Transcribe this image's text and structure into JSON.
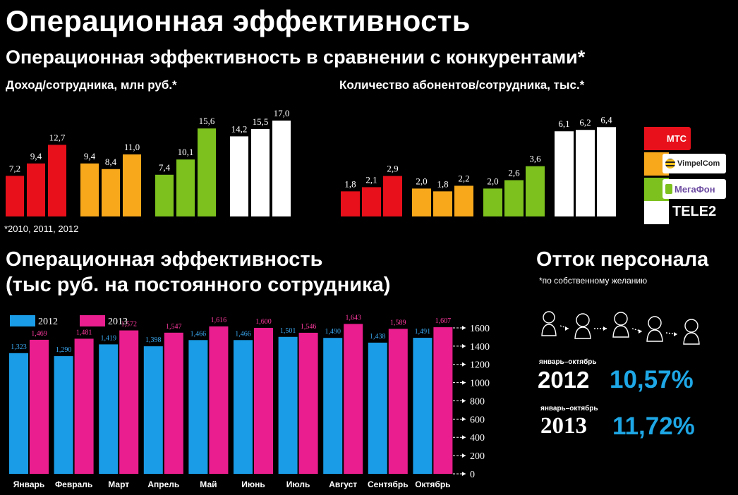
{
  "header": {
    "title": "Операционная эффективность",
    "subtitle": "Операционная эффективность в сравнении с конкурентами*"
  },
  "operator_legend": [
    {
      "name": "МТС",
      "color": "#e8101a"
    },
    {
      "name": "VimpelCom",
      "color": "#f7a81b"
    },
    {
      "name": "МегаФон",
      "color": "#7cc11d"
    },
    {
      "name": "TELE2",
      "color": "#ffffff"
    }
  ],
  "revenue_panel": {
    "title": "Доход/сотрудника, млн руб.*",
    "footnote": "*2010, 2011, 2012"
  },
  "subscribers_panel": {
    "title": "Количество абонентов/сотрудника, тыс.*"
  },
  "efficiency_section": {
    "title_line1": "Операционная эффективность",
    "title_line2": "(тыс руб. на постоянного сотрудника)"
  },
  "churn": {
    "title": "Отток персонала",
    "note": "*по собственному желанию",
    "icon": "people-chain-icon",
    "rows": [
      {
        "period": "январь–октябрь",
        "year": "2012",
        "value": "10,57%"
      },
      {
        "period": "январь–октябрь",
        "year": "2013",
        "value": "11,72%"
      }
    ]
  },
  "chart_data": [
    {
      "type": "bar",
      "title": "Доход/сотрудника, млн руб.*",
      "x": [
        "2010",
        "2011",
        "2012"
      ],
      "series": [
        {
          "name": "МТС",
          "color": "#e8101a",
          "values": [
            7.2,
            9.4,
            12.7
          ],
          "labels": [
            "7,2",
            "9,4",
            "12,7"
          ]
        },
        {
          "name": "VimpelCom",
          "color": "#f7a81b",
          "values": [
            9.4,
            8.4,
            11.0
          ],
          "labels": [
            "9,4",
            "8,4",
            "11,0"
          ]
        },
        {
          "name": "МегаФон",
          "color": "#7cc11d",
          "values": [
            7.4,
            10.1,
            15.6
          ],
          "labels": [
            "7,4",
            "10,1",
            "15,6"
          ]
        },
        {
          "name": "TELE2",
          "color": "#ffffff",
          "values": [
            14.2,
            15.5,
            17.0
          ],
          "labels": [
            "14,2",
            "15,5",
            "17,0"
          ]
        }
      ]
    },
    {
      "type": "bar",
      "title": "Количество абонентов/сотрудника, тыс.*",
      "x": [
        "2010",
        "2011",
        "2012"
      ],
      "series": [
        {
          "name": "МТС",
          "color": "#e8101a",
          "values": [
            1.8,
            2.1,
            2.9
          ],
          "labels": [
            "1,8",
            "2,1",
            "2,9"
          ]
        },
        {
          "name": "VimpelCom",
          "color": "#f7a81b",
          "values": [
            2.0,
            1.8,
            2.2
          ],
          "labels": [
            "2,0",
            "1,8",
            "2,2"
          ]
        },
        {
          "name": "МегаФон",
          "color": "#7cc11d",
          "values": [
            2.0,
            2.6,
            3.6
          ],
          "labels": [
            "2,0",
            "2,6",
            "3,6"
          ]
        },
        {
          "name": "TELE2",
          "color": "#ffffff",
          "values": [
            6.1,
            6.2,
            6.4
          ],
          "labels": [
            "6,1",
            "6,2",
            "6,4"
          ]
        }
      ]
    },
    {
      "type": "bar",
      "title": "Операционная эффективность (тыс руб. на постоянного сотрудника)",
      "categories": [
        "Январь",
        "Февраль",
        "Март",
        "Апрель",
        "Май",
        "Июнь",
        "Июль",
        "Август",
        "Сентябрь",
        "Октябрь"
      ],
      "series": [
        {
          "name": "2012",
          "color": "#1a9ce6",
          "label_color": "#3aa8f0",
          "values": [
            1323,
            1290,
            1419,
            1398,
            1466,
            1466,
            1501,
            1490,
            1438,
            1491
          ],
          "labels": [
            "1,323",
            "1,290",
            "1,419",
            "1,398",
            "1,466",
            "1,466",
            "1,501",
            "1,490",
            "1,438",
            "1,491"
          ]
        },
        {
          "name": "2013",
          "color": "#ea1e8e",
          "label_color": "#ff3aa0",
          "values": [
            1469,
            1481,
            1572,
            1547,
            1616,
            1600,
            1546,
            1643,
            1589,
            1607
          ],
          "labels": [
            "1,469",
            "1,481",
            "1,572",
            "1,547",
            "1,616",
            "1,600",
            "1,546",
            "1,643",
            "1,589",
            "1,607"
          ]
        }
      ],
      "yticks": [
        {
          "value": 0,
          "label": "0"
        },
        {
          "value": 200,
          "label": "200"
        },
        {
          "value": 400,
          "label": "400"
        },
        {
          "value": 600,
          "label": "600"
        },
        {
          "value": 800,
          "label": "800"
        },
        {
          "value": 1000,
          "label": "1000"
        },
        {
          "value": 1200,
          "label": "1200"
        },
        {
          "value": 1400,
          "label": "1400"
        },
        {
          "value": 1600,
          "label": "1600"
        }
      ],
      "ylim": [
        0,
        1700
      ],
      "legend_position": "top-left",
      "grid": false
    }
  ]
}
